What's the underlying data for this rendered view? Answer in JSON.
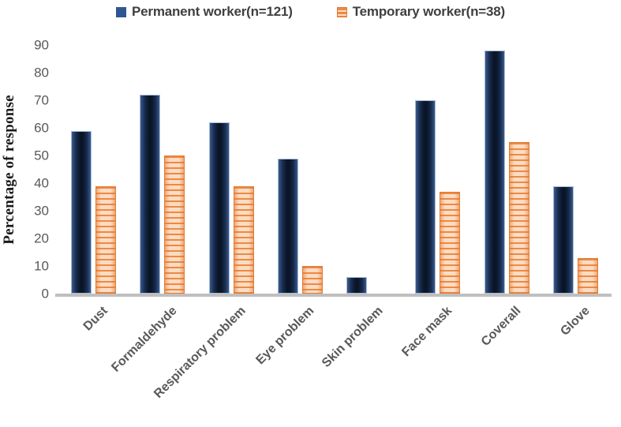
{
  "chart_data": {
    "type": "bar",
    "title": "",
    "xlabel": "",
    "ylabel": "Percentage of response",
    "ylim": [
      0,
      90
    ],
    "yticks": [
      0,
      10,
      20,
      30,
      40,
      50,
      60,
      70,
      80,
      90
    ],
    "grid": false,
    "legend_position": "top",
    "categories": [
      "Dust",
      "Formaldehyde",
      "Respiratory problem",
      "Eye problem",
      "Skin problem",
      "Face mask",
      "Coverall",
      "Glove"
    ],
    "series": [
      {
        "name": "Permanent worker(n=121)",
        "color": "#1F3459",
        "pattern": "solid",
        "values": [
          59,
          72,
          62,
          49,
          6,
          70,
          88,
          39
        ]
      },
      {
        "name": "Temporary worker(n=38)",
        "color": "#ED7D31",
        "pattern": "horizontal-stripes",
        "values": [
          39,
          50,
          39,
          10,
          0,
          37,
          55,
          13
        ]
      }
    ]
  },
  "colors": {
    "permanent_bar_center": "#0a1527",
    "permanent_bar_edge": "#3a5a8b",
    "permanent_bar_border": "#a8bcd6",
    "permanent_legend": "#2e5693",
    "temporary_stripe": "#ed8a43",
    "temporary_light": "#fbdcc3",
    "temporary_border": "#e07c33",
    "axis_line": "#bfbfbf",
    "tick_text": "#595959",
    "axis_label_text": "#595959",
    "legend_text": "#3f3f3f",
    "ytitle_text": "#1a1a1a"
  }
}
